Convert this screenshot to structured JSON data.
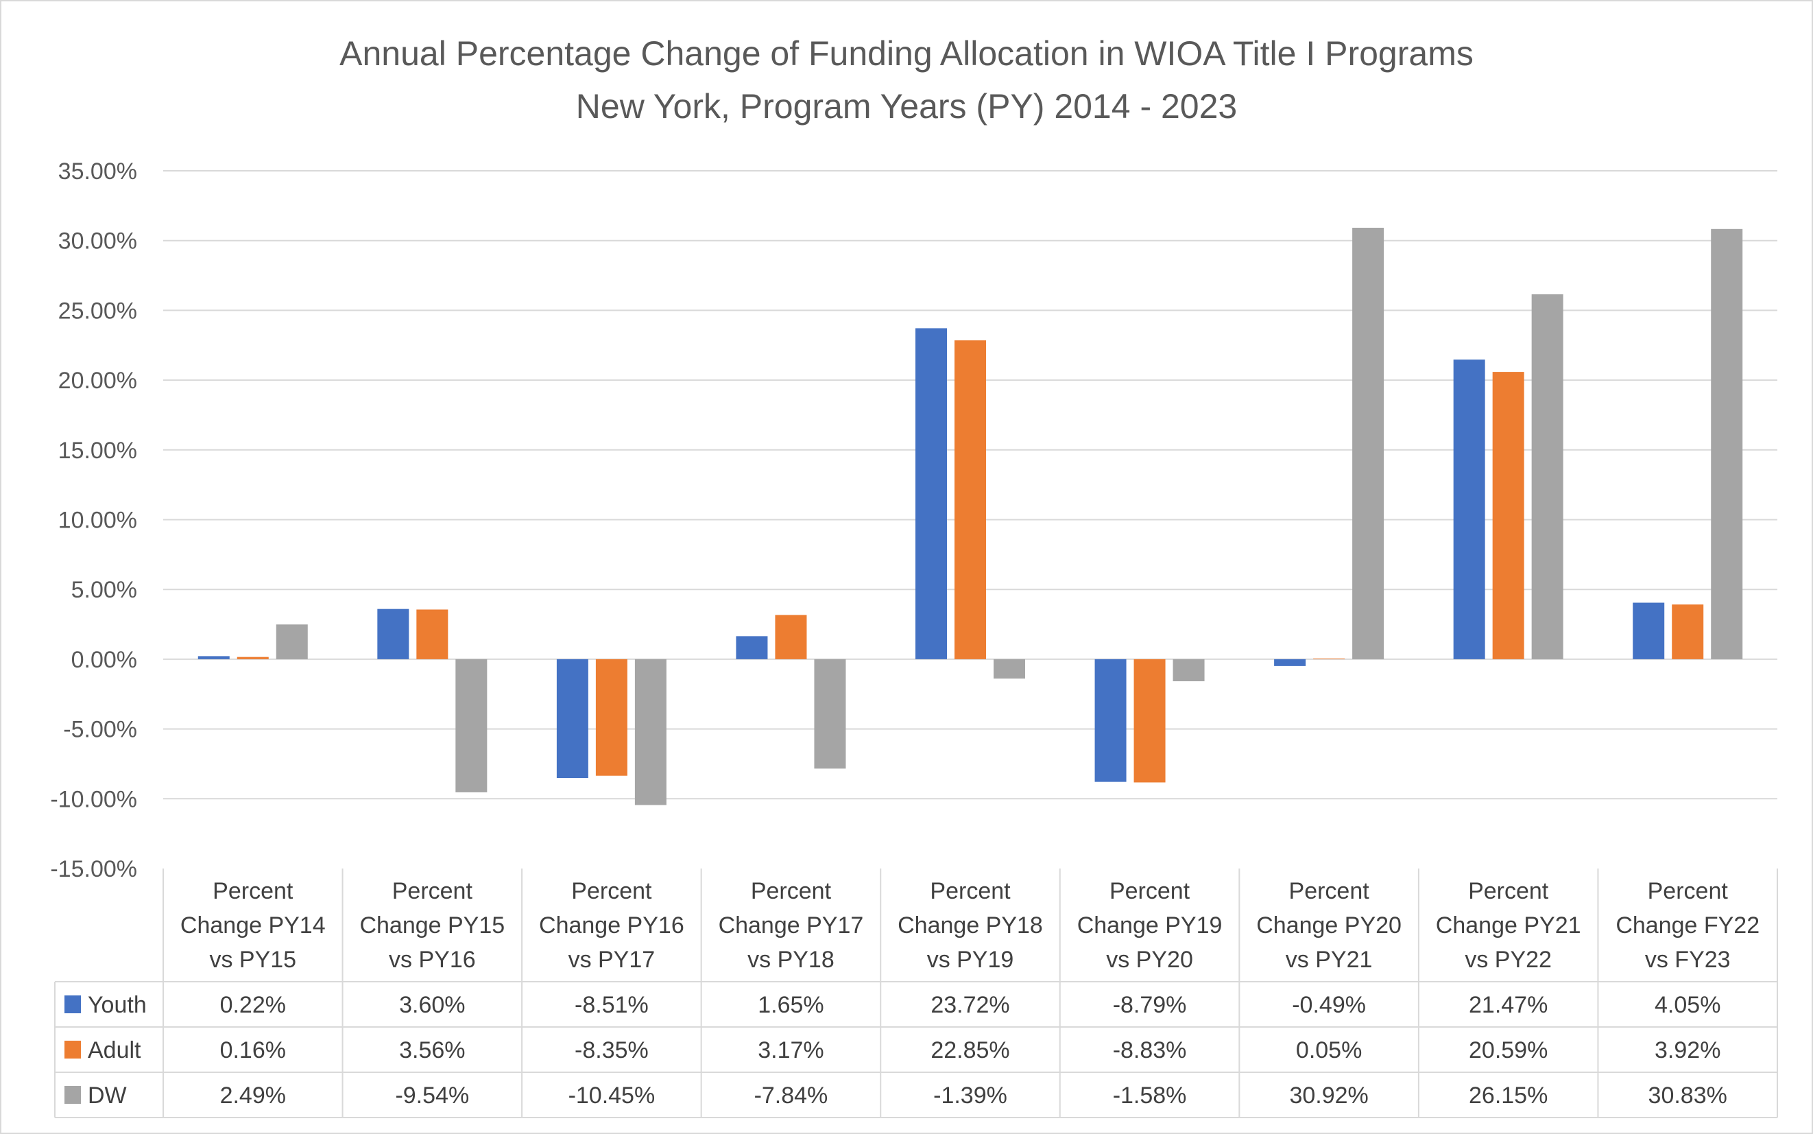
{
  "chart_data": {
    "type": "bar",
    "title": "Annual Percentage Change of Funding Allocation in WIOA Title I Programs",
    "subtitle": "New York, Program Years (PY) 2014 - 2023",
    "categories": [
      [
        "Percent",
        "Change PY14",
        "vs PY15"
      ],
      [
        "Percent",
        "Change PY15",
        "vs PY16"
      ],
      [
        "Percent",
        "Change PY16",
        "vs PY17"
      ],
      [
        "Percent",
        "Change PY17",
        "vs PY18"
      ],
      [
        "Percent",
        "Change PY18",
        "vs PY19"
      ],
      [
        "Percent",
        "Change PY19",
        "vs PY20"
      ],
      [
        "Percent",
        "Change PY20",
        "vs PY21"
      ],
      [
        "Percent",
        "Change PY21",
        "vs PY22"
      ],
      [
        "Percent",
        "Change FY22",
        "vs FY23"
      ]
    ],
    "series": [
      {
        "name": "Youth",
        "color": "#4472c4",
        "values": [
          0.22,
          3.6,
          -8.51,
          1.65,
          23.72,
          -8.79,
          -0.49,
          21.47,
          4.05
        ],
        "labels": [
          "0.22%",
          "3.60%",
          "-8.51%",
          "1.65%",
          "23.72%",
          "-8.79%",
          "-0.49%",
          "21.47%",
          "4.05%"
        ]
      },
      {
        "name": "Adult",
        "color": "#ed7d31",
        "values": [
          0.16,
          3.56,
          -8.35,
          3.17,
          22.85,
          -8.83,
          0.05,
          20.59,
          3.92
        ],
        "labels": [
          "0.16%",
          "3.56%",
          "-8.35%",
          "3.17%",
          "22.85%",
          "-8.83%",
          "0.05%",
          "20.59%",
          "3.92%"
        ]
      },
      {
        "name": "DW",
        "color": "#a5a5a5",
        "values": [
          2.49,
          -9.54,
          -10.45,
          -7.84,
          -1.39,
          -1.58,
          30.92,
          26.15,
          30.83
        ],
        "labels": [
          "2.49%",
          "-9.54%",
          "-10.45%",
          "-7.84%",
          "-1.39%",
          "-1.58%",
          "30.92%",
          "26.15%",
          "30.83%"
        ]
      }
    ],
    "ylim": [
      -15,
      35
    ],
    "yticks": [
      35,
      30,
      25,
      20,
      15,
      10,
      5,
      0,
      -5,
      -10,
      -15
    ],
    "ytick_labels": [
      "35.00%",
      "30.00%",
      "25.00%",
      "20.00%",
      "15.00%",
      "10.00%",
      "5.00%",
      "0.00%",
      "-5.00%",
      "-10.00%",
      "-15.00%"
    ],
    "grid": true,
    "legend": "data table below chart",
    "colors": {
      "gridline": "#d9d9d9",
      "text": "#595959",
      "table_border": "#d9d9d9"
    }
  }
}
